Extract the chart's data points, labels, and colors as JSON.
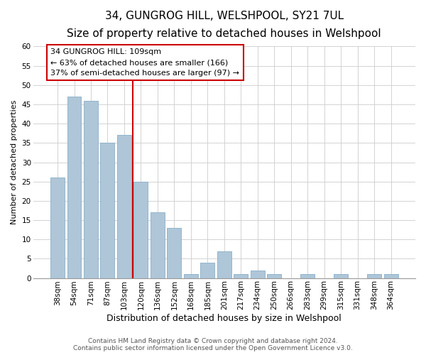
{
  "title": "34, GUNGROG HILL, WELSHPOOL, SY21 7UL",
  "subtitle": "Size of property relative to detached houses in Welshpool",
  "xlabel": "Distribution of detached houses by size in Welshpool",
  "ylabel": "Number of detached properties",
  "bin_labels": [
    "38sqm",
    "54sqm",
    "71sqm",
    "87sqm",
    "103sqm",
    "120sqm",
    "136sqm",
    "152sqm",
    "168sqm",
    "185sqm",
    "201sqm",
    "217sqm",
    "234sqm",
    "250sqm",
    "266sqm",
    "283sqm",
    "299sqm",
    "315sqm",
    "331sqm",
    "348sqm",
    "364sqm"
  ],
  "bar_heights": [
    26,
    47,
    46,
    35,
    37,
    25,
    17,
    13,
    1,
    4,
    7,
    1,
    2,
    1,
    0,
    1,
    0,
    1,
    0,
    1,
    1
  ],
  "bar_color": "#aec6d8",
  "bar_edge_color": "#8aaec8",
  "grid_color": "#cccccc",
  "background_color": "#ffffff",
  "plot_bg_color": "#ffffff",
  "red_line_x": 4.5,
  "red_line_color": "#cc0000",
  "annotation_line1": "34 GUNGROG HILL: 109sqm",
  "annotation_line2": "← 63% of detached houses are smaller (166)",
  "annotation_line3": "37% of semi-detached houses are larger (97) →",
  "ylim": [
    0,
    60
  ],
  "yticks": [
    0,
    5,
    10,
    15,
    20,
    25,
    30,
    35,
    40,
    45,
    50,
    55,
    60
  ],
  "title_fontsize": 11,
  "subtitle_fontsize": 9.5,
  "xlabel_fontsize": 9,
  "ylabel_fontsize": 8,
  "tick_fontsize": 7.5,
  "annotation_fontsize": 8,
  "footer_text": "Contains HM Land Registry data © Crown copyright and database right 2024.\nContains public sector information licensed under the Open Government Licence v3.0.",
  "footer_fontsize": 6.5
}
